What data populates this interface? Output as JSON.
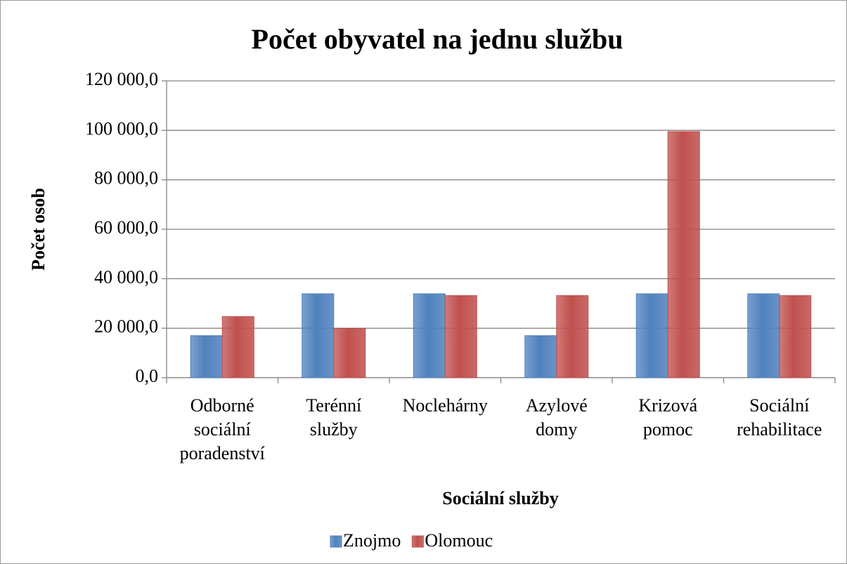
{
  "chart_data": {
    "type": "bar",
    "title": "Počet obyvatel na jednu službu",
    "x_label": "Sociální služby",
    "y_label": "Počet osob",
    "categories": [
      "Odborné sociální poradenství",
      "Terénní služby",
      "Noclehárny",
      "Azylové domy",
      "Krizová pomoc",
      "Sociální rehabilitace"
    ],
    "series": [
      {
        "name": "Znojmo",
        "color": "#4f81bd",
        "values": [
          17000,
          33900,
          33900,
          17000,
          33900,
          33900
        ]
      },
      {
        "name": "Olomouc",
        "color": "#c0504d",
        "values": [
          24700,
          19900,
          33200,
          33200,
          99500,
          33200
        ]
      }
    ],
    "ylim": [
      0,
      120000
    ],
    "yticks": [
      {
        "value": 0,
        "label": "0,0"
      },
      {
        "value": 20000,
        "label": "20 000,0"
      },
      {
        "value": 40000,
        "label": "40 000,0"
      },
      {
        "value": 60000,
        "label": "60 000,0"
      },
      {
        "value": 80000,
        "label": "80 000,0"
      },
      {
        "value": 100000,
        "label": "100 000,0"
      },
      {
        "value": 120000,
        "label": "120 000,0"
      }
    ],
    "grid": true,
    "legend": "bottom"
  }
}
